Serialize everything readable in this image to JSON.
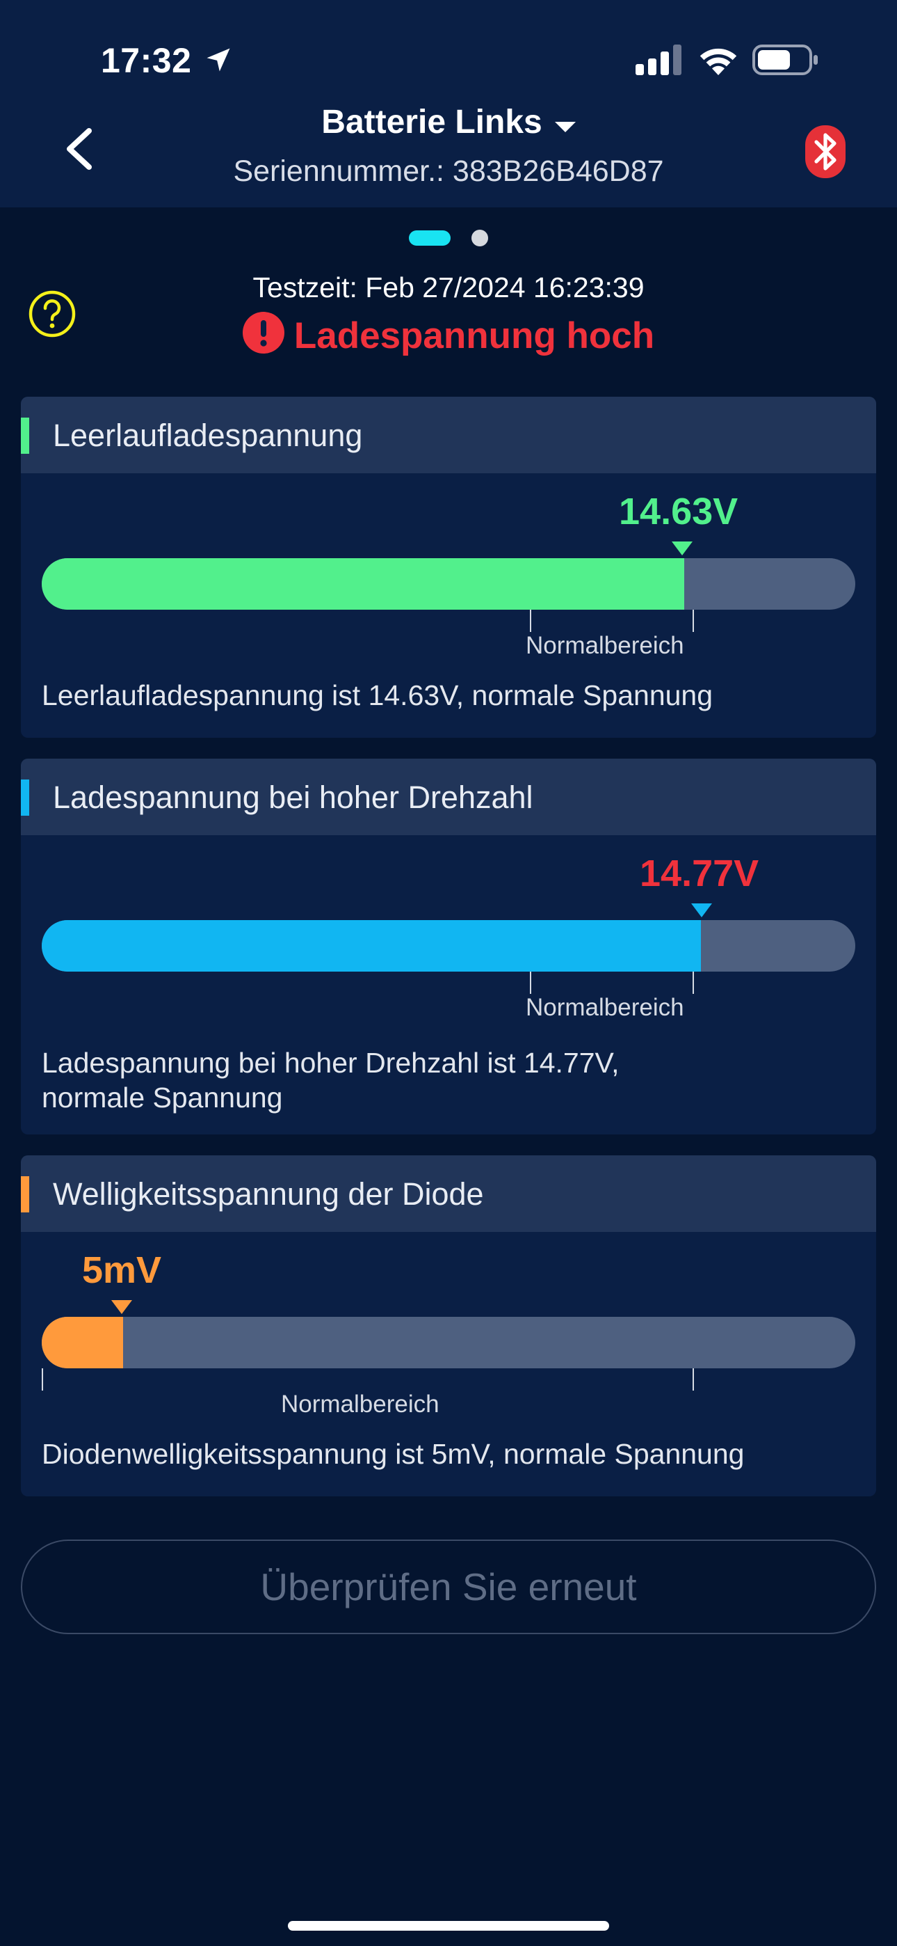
{
  "status_bar": {
    "time": "17:32"
  },
  "header": {
    "title": "Batterie Links",
    "serial": "Seriennummer.: 383B26B46D87"
  },
  "test": {
    "time": "Testzeit: Feb 27/2024 16:23:39",
    "alert": "Ladespannung hoch"
  },
  "cards": [
    {
      "title": "Leerlaufladespannung",
      "value": "14.63V",
      "value_color": "#52f08c",
      "accent": "#52f08c",
      "fill_fraction": 0.79,
      "range_label": "Normalbereich",
      "description": "Leerlaufladespannung ist 14.63V, normale Spannung"
    },
    {
      "title": "Ladespannung bei hoher Drehzahl",
      "value": "14.77V",
      "value_color": "#f0323c",
      "accent": "#11b6f2",
      "fill_fraction": 0.81,
      "range_label": "Normalbereich",
      "description_line1": "Ladespannung bei hoher Drehzahl ist 14.77V,",
      "description_line2": "normale Spannung"
    },
    {
      "title": "Welligkeitsspannung der Diode",
      "value": "5mV",
      "value_color": "#ff9a3c",
      "accent": "#ff9a3c",
      "fill_fraction": 0.1,
      "range_label": "Normalbereich",
      "description": "Diodenwelligkeitsspannung ist 5mV, normale Spannung"
    }
  ],
  "recheck_button": "Überprüfen Sie erneut",
  "icons": {
    "back": "chevron-left-icon",
    "dropdown": "caret-down-icon",
    "bluetooth": "bluetooth-icon",
    "help": "question-circle-icon",
    "alert": "exclamation-circle-icon",
    "location": "location-arrow-icon",
    "signal": "cellular-signal-icon",
    "wifi": "wifi-icon",
    "battery": "battery-icon"
  },
  "colors": {
    "header_bg": "#0a1f45",
    "page_bg": "#04142f",
    "alert_red": "#f0323c",
    "pager_active": "#19e3f2",
    "help_yellow": "#f4f01a"
  }
}
